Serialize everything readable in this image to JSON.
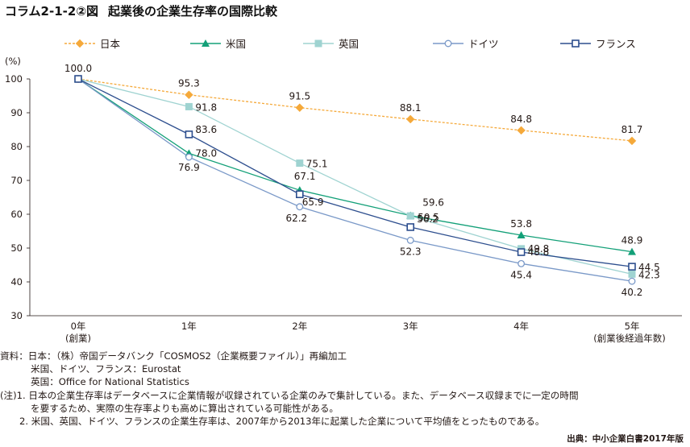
{
  "page": {
    "figure_number": "コラム2-1-2②図",
    "figure_title": "起業後の企業生存率の国際比較",
    "y_unit": "(%)",
    "notes": {
      "source_label": "資料：",
      "source_lines": [
        "日本：（株）帝国データバンク「COSMOS2（企業概要ファイル）」再編加工",
        "米国、ドイツ、フランス：Eurostat",
        "英国：Office for National Statistics"
      ],
      "note_label": "(注)",
      "note_lines": [
        "1. 日本の企業生存率はデータベースに企業情報が収録されている企業のみで集計している。また、データベース収録までに一定の時間",
        "を要するため、実際の生存率よりも高めに算出されている可能性がある。",
        "2. 米国、英国、ドイツ、フランスの企業生存率は、2007年から2013年に起業した企業について平均値をとったものである。"
      ]
    },
    "source_credit": "出典：中小企業白書2017年版"
  },
  "chart_data": {
    "type": "line",
    "title": "起業後の企業生存率の国際比較",
    "ylabel": "(%)",
    "ylim": [
      30,
      100
    ],
    "yticks": [
      30,
      40,
      50,
      60,
      70,
      80,
      90,
      100
    ],
    "x": [
      0,
      1,
      2,
      3,
      4,
      5
    ],
    "categories": [
      "0年",
      "1年",
      "2年",
      "3年",
      "4年",
      "5年"
    ],
    "category_sublabels": [
      "(創業)",
      "",
      "",
      "",
      "",
      "(創業後経過年数)"
    ],
    "grid": false,
    "legend_position": "top",
    "series": [
      {
        "name": "日本",
        "values": [
          100.0,
          95.3,
          91.5,
          88.1,
          84.8,
          81.7
        ],
        "labels": [
          "100.0",
          "95.3",
          "91.5",
          "88.1",
          "84.8",
          "81.7"
        ],
        "color": "#f5a93a",
        "marker": "diamond",
        "dashed": true
      },
      {
        "name": "米国",
        "values": [
          100.0,
          78.0,
          67.1,
          59.6,
          53.8,
          48.9
        ],
        "labels": [
          "",
          "78.0",
          "67.1",
          "59.6",
          "53.8",
          "48.9"
        ],
        "color": "#13a078",
        "marker": "triangle",
        "dashed": false
      },
      {
        "name": "英国",
        "values": [
          100.0,
          91.8,
          75.1,
          59.5,
          49.8,
          42.3
        ],
        "labels": [
          "",
          "91.8",
          "75.1",
          "59.5",
          "49.8",
          "42.3"
        ],
        "color": "#9fd3d1",
        "marker": "square-filled",
        "dashed": false
      },
      {
        "name": "ドイツ",
        "values": [
          100.0,
          76.9,
          62.2,
          52.3,
          45.4,
          40.2
        ],
        "labels": [
          "",
          "76.9",
          "62.2",
          "52.3",
          "45.4",
          "40.2"
        ],
        "color": "#7a99c8",
        "marker": "circle-open",
        "dashed": false
      },
      {
        "name": "フランス",
        "values": [
          100.0,
          83.6,
          65.9,
          56.2,
          48.8,
          44.5
        ],
        "labels": [
          "",
          "83.6",
          "65.9",
          "56.2",
          "48.8",
          "44.5"
        ],
        "color": "#2d4e8e",
        "marker": "square-open",
        "dashed": false
      }
    ]
  }
}
